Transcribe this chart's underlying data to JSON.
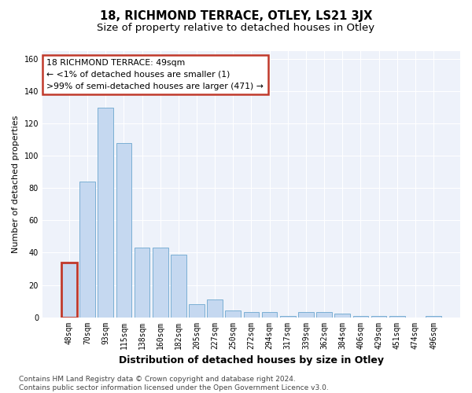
{
  "title": "18, RICHMOND TERRACE, OTLEY, LS21 3JX",
  "subtitle": "Size of property relative to detached houses in Otley",
  "xlabel": "Distribution of detached houses by size in Otley",
  "ylabel": "Number of detached properties",
  "categories": [
    "48sqm",
    "70sqm",
    "93sqm",
    "115sqm",
    "138sqm",
    "160sqm",
    "182sqm",
    "205sqm",
    "227sqm",
    "250sqm",
    "272sqm",
    "294sqm",
    "317sqm",
    "339sqm",
    "362sqm",
    "384sqm",
    "406sqm",
    "429sqm",
    "451sqm",
    "474sqm",
    "496sqm"
  ],
  "values": [
    34,
    84,
    130,
    108,
    43,
    43,
    39,
    8,
    11,
    4,
    3,
    3,
    1,
    3,
    3,
    2,
    1,
    1,
    1,
    0,
    1
  ],
  "bar_color": "#c5d8f0",
  "bar_edge_color": "#7bafd4",
  "highlight_bar_index": 0,
  "highlight_bar_edge_color": "#c0392b",
  "annotation_box_text": "18 RICHMOND TERRACE: 49sqm\n← <1% of detached houses are smaller (1)\n>99% of semi-detached houses are larger (471) →",
  "annotation_box_edge_color": "#c0392b",
  "ylim": [
    0,
    165
  ],
  "yticks": [
    0,
    20,
    40,
    60,
    80,
    100,
    120,
    140,
    160
  ],
  "background_color": "#eef2fa",
  "grid_color": "white",
  "title_fontsize": 10.5,
  "subtitle_fontsize": 9.5,
  "xlabel_fontsize": 9,
  "ylabel_fontsize": 8,
  "tick_fontsize": 7,
  "footer_text": "Contains HM Land Registry data © Crown copyright and database right 2024.\nContains public sector information licensed under the Open Government Licence v3.0.",
  "footer_fontsize": 6.5
}
